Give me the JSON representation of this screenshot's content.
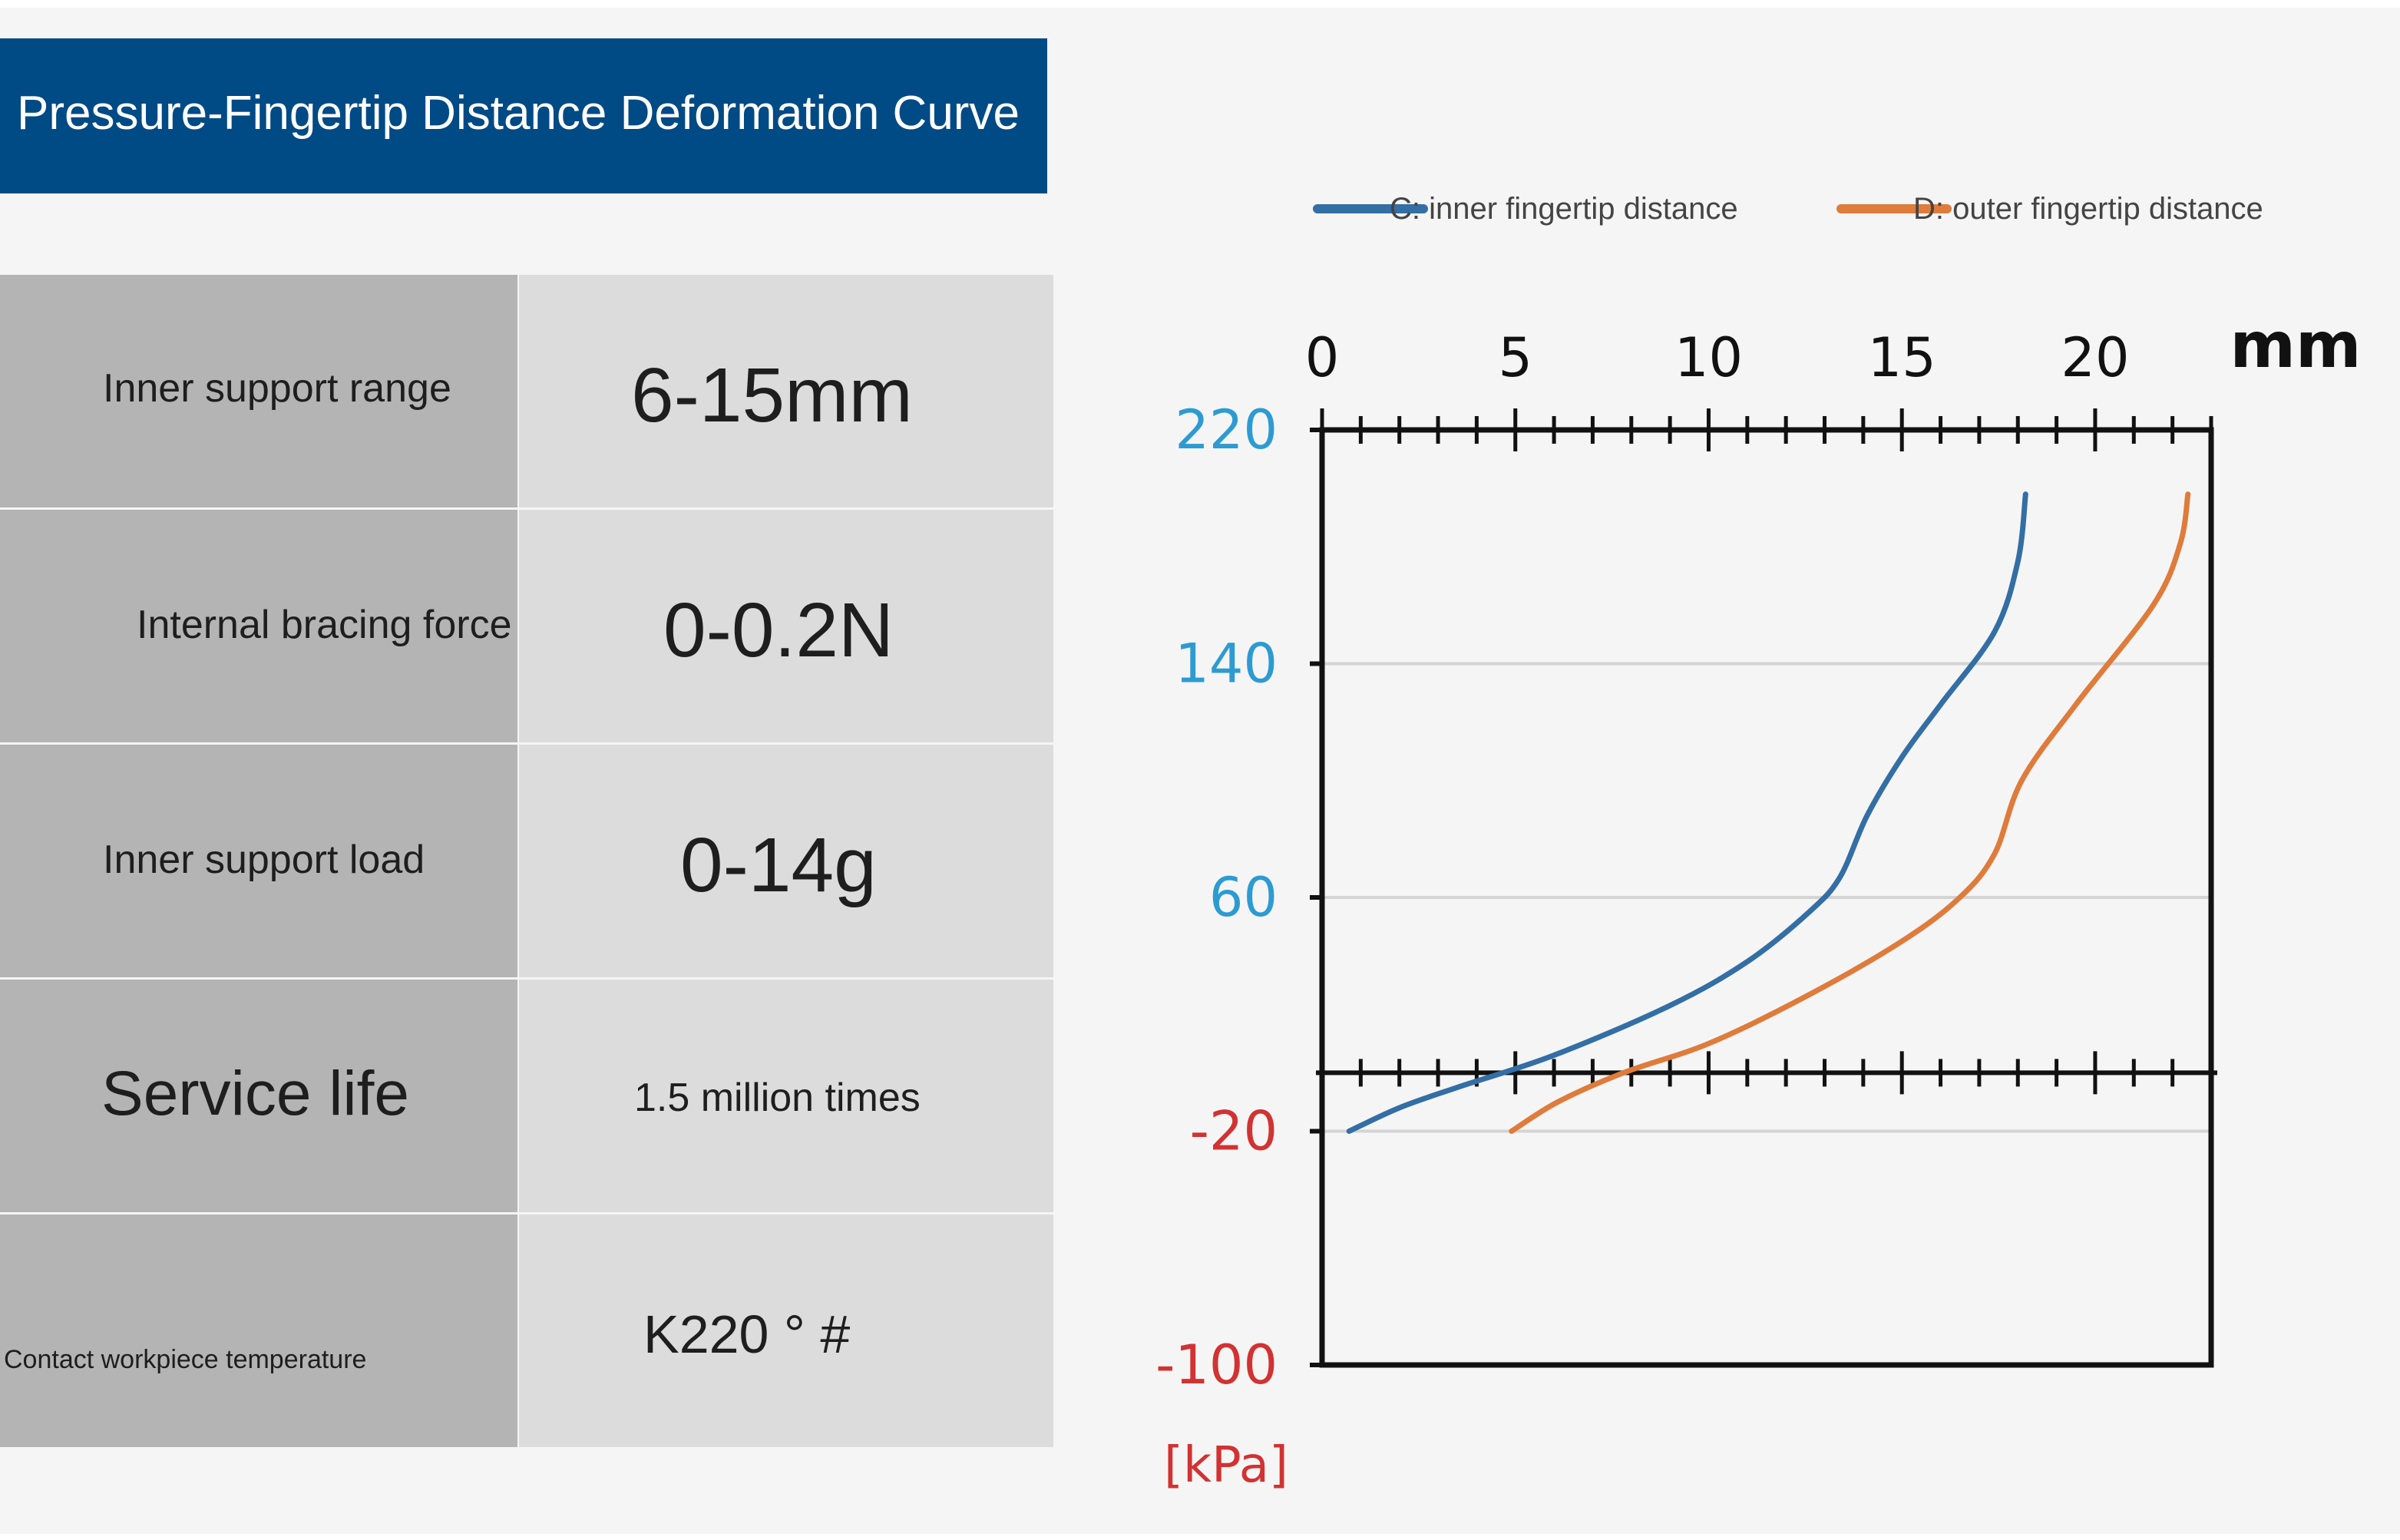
{
  "title": "Pressure-Fingertip Distance Deformation Curve",
  "specs": [
    {
      "label": "Inner support range",
      "value": "6-15mm"
    },
    {
      "label": "Internal bracing force",
      "value": "0-0.2N"
    },
    {
      "label": "Inner support load",
      "value": "0-14g"
    },
    {
      "label": "Service life",
      "value": "1.5 million times"
    },
    {
      "label": "Contact workpiece temperature",
      "value": "K220 ° #"
    }
  ],
  "colors": {
    "title_bar": "#004a85",
    "series_c": "#336ea5",
    "series_d": "#df7b3b",
    "positive_axis_label": "#2d9bd2",
    "negative_axis_label": "#d23232"
  },
  "chart_data": {
    "type": "line",
    "x_unit": "mm",
    "y_unit": "[kPa]",
    "x_ticks": [
      0,
      5,
      10,
      15,
      20
    ],
    "x_range": [
      0,
      23
    ],
    "y_ticks": [
      220,
      140,
      60,
      -20,
      -100
    ],
    "y_range": [
      -100,
      220
    ],
    "grid": "horizontal",
    "legend_position": "top",
    "series": [
      {
        "name": "C: inner fingertip distance",
        "color": "#336ea5",
        "points": [
          [
            0.7,
            -20
          ],
          [
            2,
            -12
          ],
          [
            3.5,
            -5
          ],
          [
            6,
            6
          ],
          [
            9,
            23
          ],
          [
            11,
            38
          ],
          [
            12.6,
            55
          ],
          [
            13.4,
            67
          ],
          [
            14.1,
            88
          ],
          [
            15,
            108
          ],
          [
            16,
            126
          ],
          [
            17.4,
            151
          ],
          [
            18,
            175
          ],
          [
            18.2,
            198
          ]
        ]
      },
      {
        "name": "D: outer fingertip distance",
        "color": "#df7b3b",
        "points": [
          [
            4.9,
            -20
          ],
          [
            6.1,
            -10
          ],
          [
            7.8,
            0
          ],
          [
            10,
            10
          ],
          [
            12.5,
            26
          ],
          [
            15,
            45
          ],
          [
            16.5,
            60
          ],
          [
            17.4,
            75
          ],
          [
            18.1,
            100
          ],
          [
            19.5,
            126
          ],
          [
            21.5,
            160
          ],
          [
            22.2,
            181
          ],
          [
            22.4,
            198
          ]
        ]
      }
    ]
  }
}
